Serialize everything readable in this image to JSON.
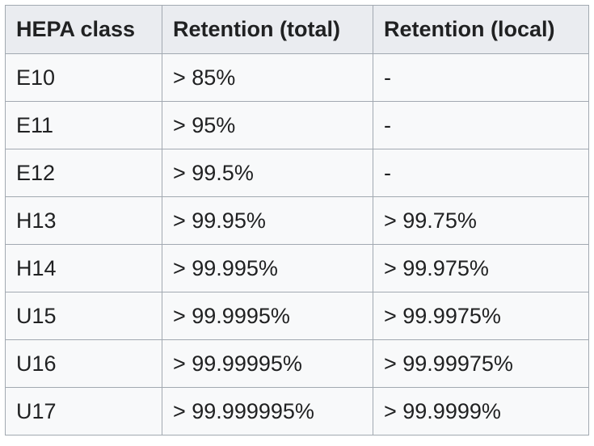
{
  "table": {
    "headers": [
      "HEPA class",
      "Retention (total)",
      "Retention (local)"
    ],
    "rows": [
      [
        "E10",
        "> 85%",
        "-"
      ],
      [
        "E11",
        "> 95%",
        "-"
      ],
      [
        "E12",
        "> 99.5%",
        "-"
      ],
      [
        "H13",
        "> 99.95%",
        "> 99.75%"
      ],
      [
        "H14",
        "> 99.995%",
        "> 99.975%"
      ],
      [
        "U15",
        "> 99.9995%",
        "> 99.9975%"
      ],
      [
        "U16",
        "> 99.99995%",
        "> 99.99975%"
      ],
      [
        "U17",
        "> 99.999995%",
        "> 99.9999%"
      ]
    ]
  }
}
